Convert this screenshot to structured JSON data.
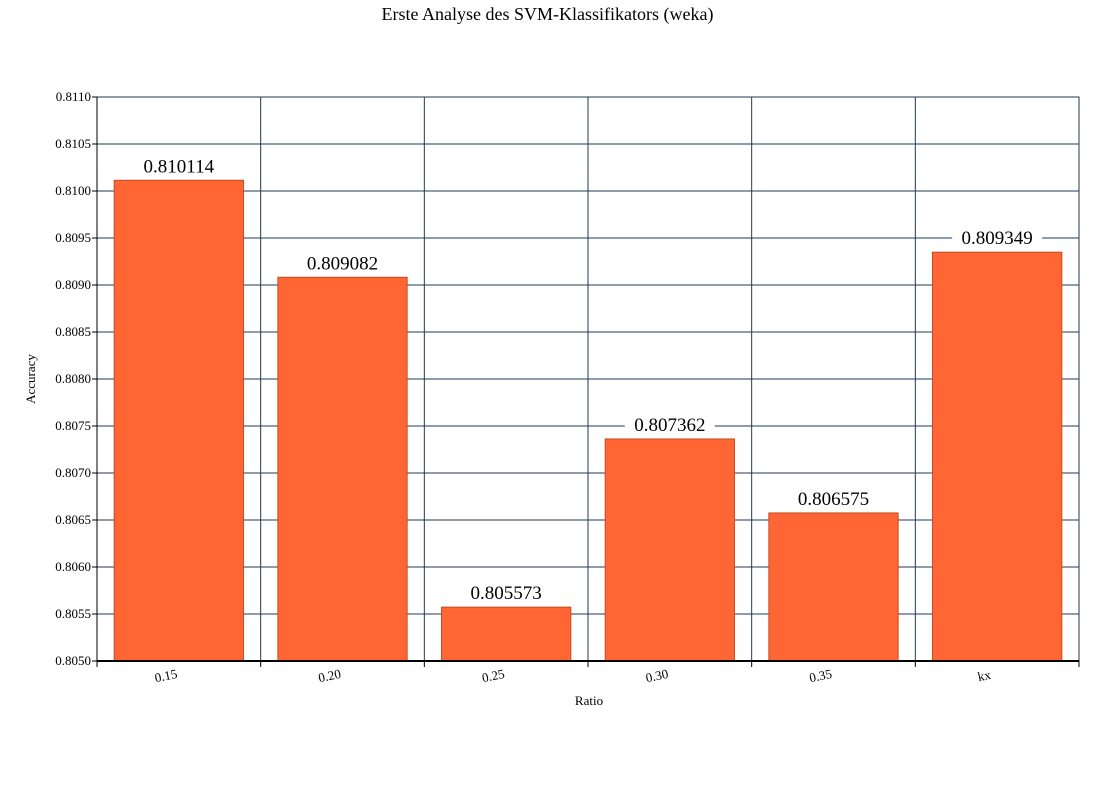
{
  "chart_data": {
    "type": "bar",
    "title": "Erste Analyse des SVM-Klassifikators (weka)",
    "xlabel": "Ratio",
    "ylabel": "Accuracy",
    "categories": [
      "0.15",
      "0.20",
      "0.25",
      "0.30",
      "0.35",
      "kx"
    ],
    "values": [
      0.810114,
      0.809082,
      0.805573,
      0.807362,
      0.806575,
      0.809349
    ],
    "value_labels": [
      "0.810114",
      "0.809082",
      "0.805573",
      "0.807362",
      "0.806575",
      "0.809349"
    ],
    "ylim": [
      0.805,
      0.811
    ],
    "yticks": [
      "0.8050",
      "0.8055",
      "0.8060",
      "0.8065",
      "0.8070",
      "0.8075",
      "0.8080",
      "0.8085",
      "0.8090",
      "0.8095",
      "0.8100",
      "0.8105",
      "0.8110"
    ],
    "grid": true,
    "legend": "none",
    "colors": {
      "bar": "#ff6633",
      "bar_edge": "#c84a1e",
      "grid": "#1f3a5a",
      "label_bg": "#ffffff"
    }
  }
}
